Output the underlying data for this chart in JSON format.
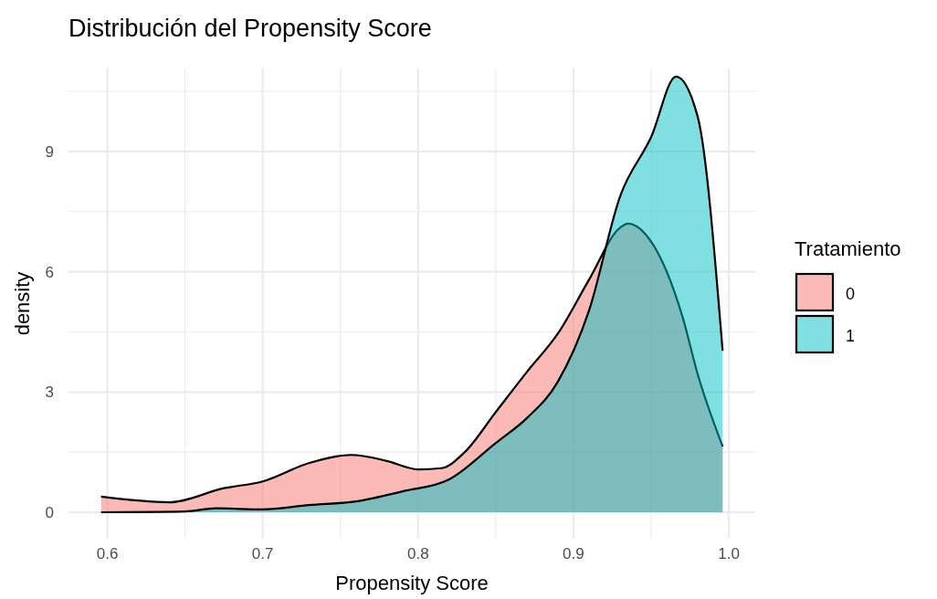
{
  "chart_data": {
    "type": "area",
    "title": "Distribución del Propensity Score",
    "xlabel": "Propensity Score",
    "ylabel": "density",
    "legend_title": "Tratamiento",
    "legend": "right",
    "grid": true,
    "xlim": [
      0.575,
      1.017
    ],
    "ylim": [
      -0.66,
      11.07
    ],
    "xticks": [
      0.6,
      {
        "value": 0.65,
        "label": null
      },
      0.7,
      {
        "value": 0.75,
        "label": null
      },
      0.8,
      {
        "value": 0.85,
        "label": null
      },
      0.9,
      {
        "value": 0.95,
        "label": null
      },
      {
        "value": 1.0,
        "label": "1.0"
      }
    ],
    "yticks": [
      0,
      {
        "value": 1.5,
        "label": null
      },
      3,
      {
        "value": 4.5,
        "label": null
      },
      6,
      {
        "value": 7.5,
        "label": null
      },
      9,
      {
        "value": 10.5,
        "label": null
      }
    ],
    "series": [
      {
        "name": "0",
        "color": "#f8766d",
        "x": [
          0.596,
          0.64,
          0.675,
          0.7,
          0.73,
          0.757,
          0.78,
          0.8,
          0.815,
          0.83,
          0.85,
          0.87,
          0.89,
          0.91,
          0.93,
          0.935,
          0.95,
          0.97,
          0.98,
          0.996
        ],
        "values": [
          0.39,
          0.25,
          0.6,
          0.77,
          1.23,
          1.43,
          1.28,
          1.07,
          1.1,
          1.5,
          2.5,
          3.5,
          4.46,
          5.8,
          7.1,
          7.2,
          6.75,
          4.9,
          3.44,
          1.64
        ]
      },
      {
        "name": "1",
        "color": "#00bfc4",
        "x": [
          0.596,
          0.65,
          0.67,
          0.7,
          0.73,
          0.76,
          0.79,
          0.82,
          0.85,
          0.87,
          0.89,
          0.91,
          0.93,
          0.95,
          0.966,
          0.98,
          0.996
        ],
        "values": [
          0,
          0.02,
          0.1,
          0.07,
          0.18,
          0.27,
          0.52,
          0.82,
          1.73,
          2.35,
          3.26,
          5.03,
          7.88,
          9.36,
          10.87,
          9.86,
          4.03
        ]
      }
    ]
  }
}
